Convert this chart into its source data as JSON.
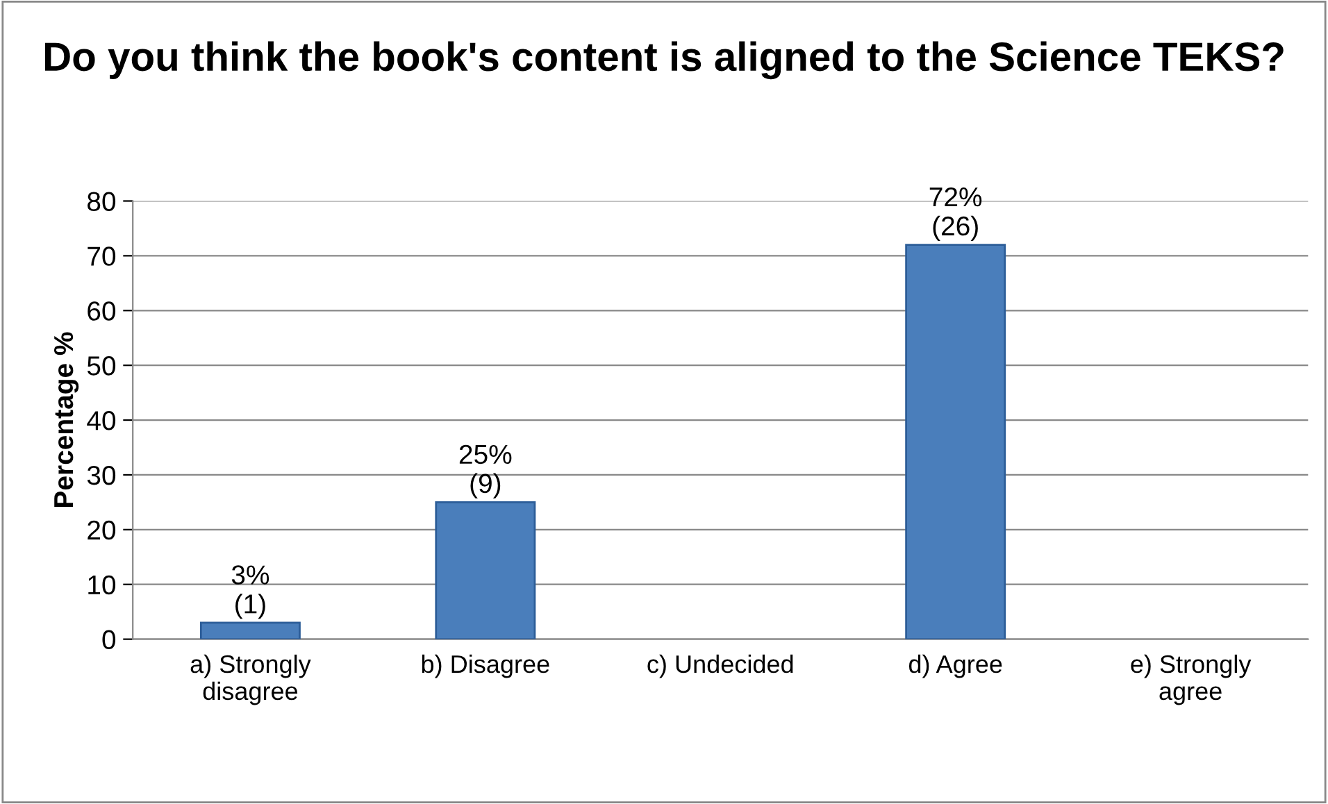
{
  "chart_data": {
    "type": "bar",
    "title": "Do you think the book's content is aligned to the Science TEKS?",
    "ylabel": "Percentage %",
    "categories": [
      "a) Strongly\ndisagree",
      "b) Disagree",
      "c) Undecided",
      "d) Agree",
      "e) Strongly\nagree"
    ],
    "values": [
      3,
      25,
      null,
      72,
      null
    ],
    "value_labels": [
      "3%\n(1)",
      "25%\n(9)",
      null,
      "72%\n(26)",
      null
    ],
    "color": "#4a7ebb",
    "ylim": [
      0,
      80
    ],
    "yticks": [
      0,
      10,
      20,
      30,
      40,
      50,
      60,
      70,
      80
    ],
    "grid": "y",
    "legend": false
  }
}
